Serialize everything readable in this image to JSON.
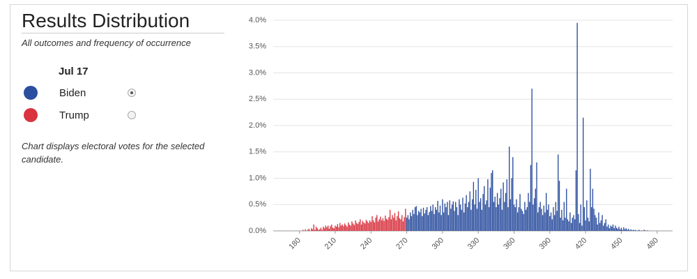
{
  "title": "Results Distribution",
  "subtitle": "All outcomes and frequency of occurrence",
  "legend_title": "Jul 17",
  "note": "Chart displays electoral votes for the selected candidate.",
  "chart_data": {
    "type": "bar",
    "xlim": [
      158,
      493
    ],
    "ylim": [
      0,
      4
    ],
    "xticks": [
      180,
      210,
      240,
      270,
      300,
      330,
      360,
      390,
      420,
      450,
      480
    ],
    "yticks": [
      {
        "value": 0,
        "label": "0.0%"
      },
      {
        "value": 0.5,
        "label": "0.5%"
      },
      {
        "value": 1,
        "label": "1.0%"
      },
      {
        "value": 1.5,
        "label": "1.5%"
      },
      {
        "value": 2,
        "label": "2.0%"
      },
      {
        "value": 2.5,
        "label": "2.5%"
      },
      {
        "value": 3,
        "label": "3.0%"
      },
      {
        "value": 3.5,
        "label": "3.5%"
      },
      {
        "value": 4,
        "label": "4.0%"
      }
    ],
    "grid": true,
    "series": [
      {
        "name": "Biden",
        "color": "#2b4e9e",
        "x": [
          270,
          271,
          272,
          273,
          274,
          275,
          276,
          277,
          278,
          279,
          280,
          281,
          282,
          283,
          284,
          285,
          286,
          287,
          288,
          289,
          290,
          291,
          292,
          293,
          294,
          295,
          296,
          297,
          298,
          299,
          300,
          301,
          302,
          303,
          304,
          305,
          306,
          307,
          308,
          309,
          310,
          311,
          312,
          313,
          314,
          315,
          316,
          317,
          318,
          319,
          320,
          321,
          322,
          323,
          324,
          325,
          326,
          327,
          328,
          329,
          330,
          331,
          332,
          333,
          334,
          335,
          336,
          337,
          338,
          339,
          340,
          341,
          342,
          343,
          344,
          345,
          346,
          347,
          348,
          349,
          350,
          351,
          352,
          353,
          354,
          355,
          356,
          357,
          358,
          359,
          360,
          361,
          362,
          363,
          364,
          365,
          366,
          367,
          368,
          369,
          370,
          371,
          372,
          373,
          374,
          375,
          376,
          377,
          378,
          379,
          380,
          381,
          382,
          383,
          384,
          385,
          386,
          387,
          388,
          389,
          390,
          391,
          392,
          393,
          394,
          395,
          396,
          397,
          398,
          399,
          400,
          401,
          402,
          403,
          404,
          405,
          406,
          407,
          408,
          409,
          410,
          411,
          412,
          413,
          414,
          415,
          416,
          417,
          418,
          419,
          420,
          421,
          422,
          423,
          424,
          425,
          426,
          427,
          428,
          429,
          430,
          431,
          432,
          433,
          434,
          435,
          436,
          437,
          438,
          439,
          440,
          441,
          442,
          443,
          444,
          445,
          446,
          447,
          448,
          449,
          450,
          451,
          452,
          453,
          454,
          455,
          456,
          457,
          458,
          459,
          460,
          461,
          462,
          463,
          464,
          465,
          466,
          467,
          468,
          469,
          470,
          471,
          472
        ],
        "values": [
          0.25,
          0.3,
          0.22,
          0.35,
          0.28,
          0.4,
          0.32,
          0.45,
          0.47,
          0.3,
          0.38,
          0.35,
          0.42,
          0.28,
          0.44,
          0.33,
          0.4,
          0.45,
          0.3,
          0.36,
          0.47,
          0.38,
          0.5,
          0.32,
          0.45,
          0.4,
          0.57,
          0.35,
          0.48,
          0.3,
          0.6,
          0.35,
          0.52,
          0.45,
          0.55,
          0.3,
          0.58,
          0.42,
          0.5,
          0.56,
          0.38,
          0.55,
          0.45,
          0.3,
          0.6,
          0.5,
          0.4,
          0.63,
          0.35,
          0.52,
          0.68,
          0.45,
          0.55,
          0.75,
          0.4,
          0.6,
          0.93,
          0.5,
          0.78,
          0.42,
          1.0,
          0.55,
          0.62,
          0.4,
          0.7,
          0.85,
          0.5,
          0.58,
          0.98,
          0.45,
          0.82,
          1.1,
          1.15,
          0.55,
          0.65,
          0.45,
          0.72,
          0.5,
          0.62,
          0.8,
          0.4,
          0.92,
          0.55,
          0.72,
          0.98,
          0.45,
          1.6,
          0.6,
          1.0,
          1.4,
          0.5,
          0.45,
          0.6,
          0.35,
          0.45,
          0.7,
          0.42,
          0.38,
          0.32,
          0.55,
          0.4,
          0.45,
          0.72,
          0.55,
          1.25,
          2.7,
          0.5,
          0.62,
          0.8,
          1.3,
          0.35,
          0.45,
          0.55,
          0.42,
          0.3,
          0.48,
          0.35,
          0.72,
          0.4,
          0.5,
          0.28,
          0.35,
          0.22,
          0.45,
          0.3,
          0.55,
          0.38,
          1.45,
          0.95,
          0.25,
          0.4,
          0.2,
          0.55,
          0.25,
          0.8,
          0.22,
          0.18,
          0.35,
          0.15,
          0.25,
          0.3,
          0.22,
          1.15,
          3.95,
          0.32,
          0.15,
          0.5,
          0.1,
          2.15,
          0.45,
          0.2,
          0.58,
          0.25,
          0.18,
          1.18,
          0.45,
          0.8,
          0.42,
          0.3,
          0.25,
          0.12,
          0.35,
          0.15,
          0.2,
          0.3,
          0.1,
          0.15,
          0.22,
          0.08,
          0.12,
          0.05,
          0.1,
          0.08,
          0.12,
          0.05,
          0.1,
          0.06,
          0.04,
          0.08,
          0.03,
          0.06,
          0.02,
          0.07,
          0.03,
          0.05,
          0.02,
          0.04,
          0.01,
          0.03,
          0.01,
          0.02,
          0.01,
          0.02,
          0,
          0.01,
          0.02,
          0,
          0.01,
          0,
          0.02,
          0.01,
          0,
          0.01
        ]
      },
      {
        "name": "Trump",
        "color": "#d8333f",
        "x": [
          183,
          184,
          185,
          186,
          187,
          188,
          189,
          190,
          191,
          192,
          193,
          194,
          195,
          196,
          197,
          198,
          199,
          200,
          201,
          202,
          203,
          204,
          205,
          206,
          207,
          208,
          209,
          210,
          211,
          212,
          213,
          214,
          215,
          216,
          217,
          218,
          219,
          220,
          221,
          222,
          223,
          224,
          225,
          226,
          227,
          228,
          229,
          230,
          231,
          232,
          233,
          234,
          235,
          236,
          237,
          238,
          239,
          240,
          241,
          242,
          243,
          244,
          245,
          246,
          247,
          248,
          249,
          250,
          251,
          252,
          253,
          254,
          255,
          256,
          257,
          258,
          259,
          260,
          261,
          262,
          263,
          264,
          265,
          266,
          267,
          268,
          269
        ],
        "values": [
          0.02,
          0,
          0.03,
          0,
          0.02,
          0.04,
          0,
          0.05,
          0.03,
          0.12,
          0.02,
          0.08,
          0.05,
          0.02,
          0.03,
          0.06,
          0.02,
          0.08,
          0.05,
          0.1,
          0.07,
          0.1,
          0.04,
          0.09,
          0.12,
          0.06,
          0.05,
          0.1,
          0.08,
          0.13,
          0.07,
          0.15,
          0.1,
          0.12,
          0.09,
          0.14,
          0.11,
          0.08,
          0.16,
          0.12,
          0.1,
          0.18,
          0.14,
          0.11,
          0.2,
          0.15,
          0.13,
          0.17,
          0.22,
          0.12,
          0.19,
          0.16,
          0.14,
          0.21,
          0.18,
          0.15,
          0.2,
          0.17,
          0.28,
          0.2,
          0.16,
          0.25,
          0.3,
          0.18,
          0.22,
          0.27,
          0.2,
          0.24,
          0.19,
          0.29,
          0.23,
          0.21,
          0.26,
          0.4,
          0.22,
          0.3,
          0.25,
          0.34,
          0.2,
          0.28,
          0.37,
          0.24,
          0.22,
          0.3,
          0.18,
          0.26,
          0.42
        ]
      }
    ]
  }
}
